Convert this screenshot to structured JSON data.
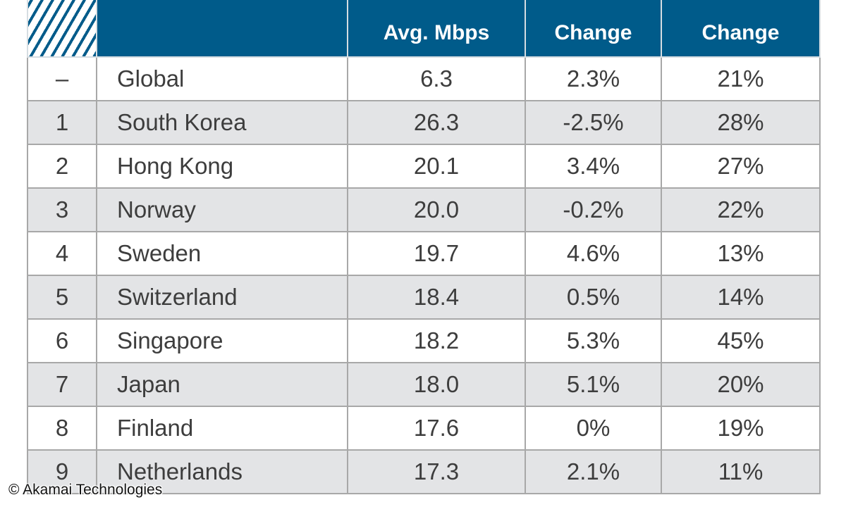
{
  "chart_data": {
    "type": "table",
    "columns": [
      {
        "key": "rank",
        "label": ""
      },
      {
        "key": "country",
        "label": ""
      },
      {
        "key": "avg_mbps",
        "label": "Avg. Mbps"
      },
      {
        "key": "qoq_change",
        "label": "Change"
      },
      {
        "key": "yoy_change",
        "label": "Change"
      }
    ],
    "rows": [
      {
        "rank": "–",
        "country": "Global",
        "avg_mbps": "6.3",
        "qoq_change": "2.3%",
        "yoy_change": "21%"
      },
      {
        "rank": "1",
        "country": "South Korea",
        "avg_mbps": "26.3",
        "qoq_change": "-2.5%",
        "yoy_change": "28%"
      },
      {
        "rank": "2",
        "country": "Hong Kong",
        "avg_mbps": "20.1",
        "qoq_change": "3.4%",
        "yoy_change": "27%"
      },
      {
        "rank": "3",
        "country": "Norway",
        "avg_mbps": "20.0",
        "qoq_change": "-0.2%",
        "yoy_change": "22%"
      },
      {
        "rank": "4",
        "country": "Sweden",
        "avg_mbps": "19.7",
        "qoq_change": "4.6%",
        "yoy_change": "13%"
      },
      {
        "rank": "5",
        "country": "Switzerland",
        "avg_mbps": "18.4",
        "qoq_change": "0.5%",
        "yoy_change": "14%"
      },
      {
        "rank": "6",
        "country": "Singapore",
        "avg_mbps": "18.2",
        "qoq_change": "5.3%",
        "yoy_change": "45%"
      },
      {
        "rank": "7",
        "country": "Japan",
        "avg_mbps": "18.0",
        "qoq_change": "5.1%",
        "yoy_change": "20%"
      },
      {
        "rank": "8",
        "country": "Finland",
        "avg_mbps": "17.6",
        "qoq_change": "0%",
        "yoy_change": "19%"
      },
      {
        "rank": "9",
        "country": "Netherlands",
        "avg_mbps": "17.3",
        "qoq_change": "2.1%",
        "yoy_change": "11%"
      }
    ]
  },
  "credit": "© Akamai Technologies",
  "colors": {
    "header_bg": "#005b8a",
    "header_text": "#ffffff",
    "row_alt": "#e3e4e6",
    "border": "#a8a8a8",
    "body_text": "#3d3d3d"
  }
}
